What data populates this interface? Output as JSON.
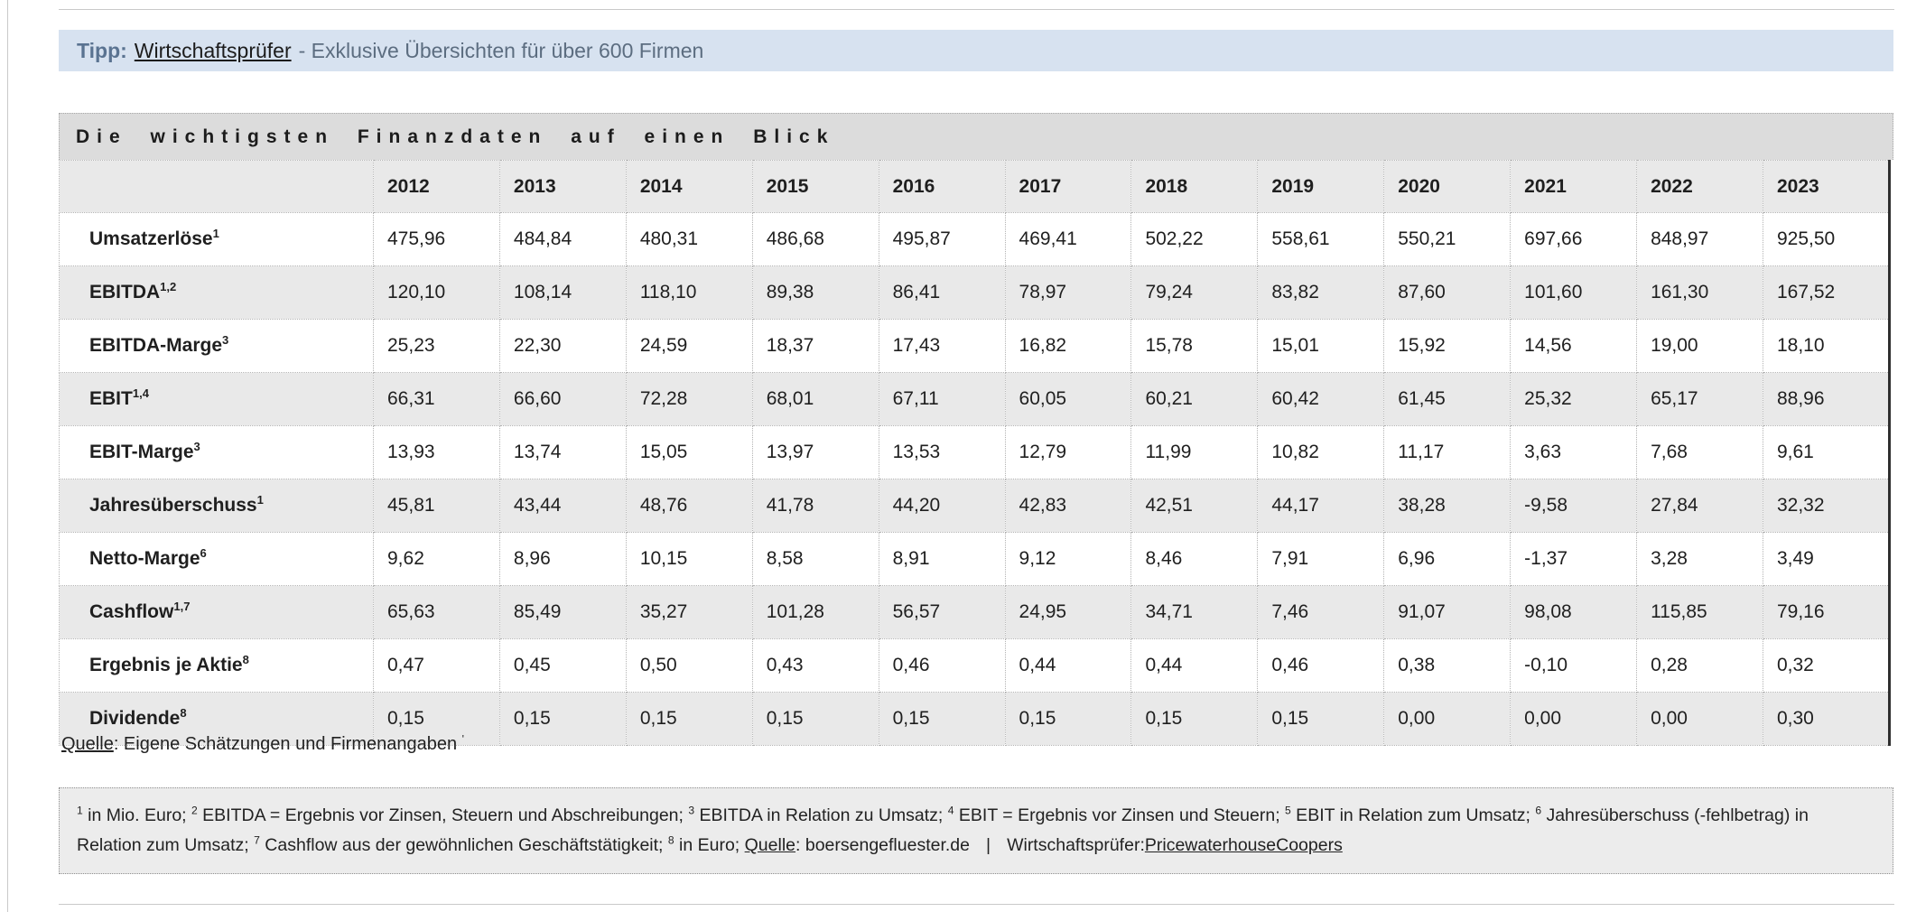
{
  "banner": {
    "tipp_label": "Tipp:",
    "link": "Wirtschaftsprüfer",
    "rest": "- Exklusive Übersichten für über 600 Firmen"
  },
  "table": {
    "title": "Die wichtigsten Finanzdaten auf einen Blick",
    "years": [
      "2012",
      "2013",
      "2014",
      "2015",
      "2016",
      "2017",
      "2018",
      "2019",
      "2020",
      "2021",
      "2022",
      "2023"
    ],
    "rows": [
      {
        "label": "Umsatzerlöse",
        "sup": "1",
        "values": [
          "475,96",
          "484,84",
          "480,31",
          "486,68",
          "495,87",
          "469,41",
          "502,22",
          "558,61",
          "550,21",
          "697,66",
          "848,97",
          "925,50"
        ]
      },
      {
        "label": "EBITDA",
        "sup": "1,2",
        "values": [
          "120,10",
          "108,14",
          "118,10",
          "89,38",
          "86,41",
          "78,97",
          "79,24",
          "83,82",
          "87,60",
          "101,60",
          "161,30",
          "167,52"
        ]
      },
      {
        "label": "EBITDA-Marge",
        "sup": "3",
        "values": [
          "25,23",
          "22,30",
          "24,59",
          "18,37",
          "17,43",
          "16,82",
          "15,78",
          "15,01",
          "15,92",
          "14,56",
          "19,00",
          "18,10"
        ]
      },
      {
        "label": "EBIT",
        "sup": "1,4",
        "values": [
          "66,31",
          "66,60",
          "72,28",
          "68,01",
          "67,11",
          "60,05",
          "60,21",
          "60,42",
          "61,45",
          "25,32",
          "65,17",
          "88,96"
        ]
      },
      {
        "label": "EBIT-Marge",
        "sup": "3",
        "values": [
          "13,93",
          "13,74",
          "15,05",
          "13,97",
          "13,53",
          "12,79",
          "11,99",
          "10,82",
          "11,17",
          "3,63",
          "7,68",
          "9,61"
        ]
      },
      {
        "label": "Jahresüberschuss",
        "sup": "1",
        "values": [
          "45,81",
          "43,44",
          "48,76",
          "41,78",
          "44,20",
          "42,83",
          "42,51",
          "44,17",
          "38,28",
          "-9,58",
          "27,84",
          "32,32"
        ]
      },
      {
        "label": "Netto-Marge",
        "sup": "6",
        "values": [
          "9,62",
          "8,96",
          "10,15",
          "8,58",
          "8,91",
          "9,12",
          "8,46",
          "7,91",
          "6,96",
          "-1,37",
          "3,28",
          "3,49"
        ]
      },
      {
        "label": "Cashflow",
        "sup": "1,7",
        "values": [
          "65,63",
          "85,49",
          "35,27",
          "101,28",
          "56,57",
          "24,95",
          "34,71",
          "7,46",
          "91,07",
          "98,08",
          "115,85",
          "79,16"
        ]
      },
      {
        "label": "Ergebnis je Aktie",
        "sup": "8",
        "values": [
          "0,47",
          "0,45",
          "0,50",
          "0,43",
          "0,46",
          "0,44",
          "0,44",
          "0,46",
          "0,38",
          "-0,10",
          "0,28",
          "0,32"
        ]
      },
      {
        "label": "Dividende",
        "sup": "8",
        "values": [
          "0,15",
          "0,15",
          "0,15",
          "0,15",
          "0,15",
          "0,15",
          "0,15",
          "0,15",
          "0,00",
          "0,00",
          "0,00",
          "0,30"
        ]
      }
    ]
  },
  "source_line": {
    "label": "Quelle",
    "text": ": Eigene Schätzungen und Firmenangaben ",
    "tick": "'"
  },
  "footnotes": {
    "segments": [
      {
        "sup": "1",
        "text": " in Mio. Euro; "
      },
      {
        "sup": "2",
        "text": " EBITDA = Ergebnis vor Zinsen, Steuern und Abschreibungen; "
      },
      {
        "sup": "3",
        "text": " EBITDA in Relation zu Umsatz; "
      },
      {
        "sup": "4",
        "text": " EBIT = Ergebnis vor Zinsen und Steuern; "
      },
      {
        "sup": "5",
        "text": " EBIT in Relation zum Umsatz; "
      },
      {
        "sup": "6",
        "text": " Jahresüberschuss (-fehlbetrag) in Relation zum Umsatz; "
      },
      {
        "sup": "7",
        "text": " Cashflow aus der gewöhnlichen Geschäftstätigkeit; "
      },
      {
        "sup": "8",
        "text": " in Euro; "
      }
    ],
    "quelle_label": "Quelle",
    "quelle_text": ": boersengefluester.de",
    "separator": "|",
    "auditor_label": "Wirtschaftsprüfer:",
    "auditor_link": "PricewaterhouseCoopers"
  },
  "colors": {
    "banner_bg": "#d7e2f0",
    "stripe_gray": "#e9e9e9",
    "title_bar_gray": "#dcdcdc",
    "footnote_bg": "#ececec",
    "rule_gray": "#c9c9c9",
    "table_right_border": "#2f2f2f"
  }
}
